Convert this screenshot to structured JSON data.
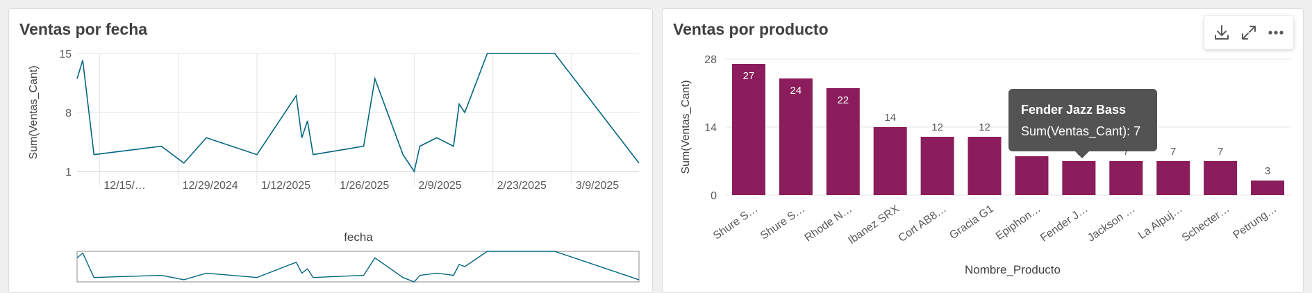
{
  "left_panel": {
    "title": "Ventas por fecha"
  },
  "right_panel": {
    "title": "Ventas por producto",
    "toolbar": {
      "download_icon": "download-icon",
      "expand_icon": "expand-icon",
      "more_icon": "more-options-icon"
    },
    "tooltip": {
      "title": "Fender Jazz Bass",
      "measure": "Sum(Ventas_Cant): 7"
    }
  },
  "chart_data": [
    {
      "type": "line",
      "title": "Ventas por fecha",
      "xlabel": "fecha",
      "ylabel": "Sum(Ventas_Cant)",
      "ylim": [
        1,
        15
      ],
      "y_ticks": [
        1,
        8,
        15
      ],
      "x_ticks": [
        "12/15/…",
        "12/29/2024",
        "1/12/2025",
        "1/26/2025",
        "2/9/2025",
        "2/23/2025",
        "3/9/2025"
      ],
      "x_tick_dates": [
        "2024-12-15",
        "2024-12-29",
        "2025-01-12",
        "2025-01-26",
        "2025-02-09",
        "2025-02-23",
        "2025-03-09"
      ],
      "grid": true,
      "line_color": "#006580",
      "series": [
        {
          "x": [
            "2024-12-11",
            "2024-12-12",
            "2024-12-14",
            "2024-12-26",
            "2024-12-30",
            "2025-01-03",
            "2025-01-12",
            "2025-01-19",
            "2025-01-20",
            "2025-01-21",
            "2025-01-22",
            "2025-01-31",
            "2025-02-02",
            "2025-02-07",
            "2025-02-09",
            "2025-02-10",
            "2025-02-13",
            "2025-02-16",
            "2025-02-17",
            "2025-02-18",
            "2025-02-22",
            "2025-02-25",
            "2025-03-06",
            "2025-03-21"
          ],
          "y": [
            12,
            14.2,
            3,
            4,
            2,
            5,
            3,
            10,
            5,
            7,
            3,
            4,
            12,
            3,
            1,
            4,
            5,
            4,
            9,
            8,
            15,
            15,
            15,
            2
          ]
        }
      ],
      "navigator": true
    },
    {
      "type": "bar",
      "title": "Ventas por producto",
      "xlabel": "Nombre_Producto",
      "ylabel": "Sum(Ventas_Cant)",
      "ylim": [
        0,
        28
      ],
      "y_ticks": [
        0,
        14,
        28
      ],
      "grid": true,
      "bar_color": "#8b1d5c",
      "categories": [
        "Shure S…",
        "Shure S…",
        "Rhode N…",
        "Ibanez SRX",
        "Cort AB8…",
        "Gracia G1",
        "Epiphon…",
        "Fender J…",
        "Jackson …",
        "La Alpuj…",
        "Schecter…",
        "Petrung…"
      ],
      "values": [
        27,
        24,
        22,
        14,
        12,
        12,
        8,
        7,
        7,
        7,
        7,
        3
      ],
      "data_labels": [
        "27",
        "24",
        "22",
        "14",
        "12",
        "12",
        "8",
        "7",
        "7",
        "7",
        "7",
        "3"
      ]
    }
  ]
}
